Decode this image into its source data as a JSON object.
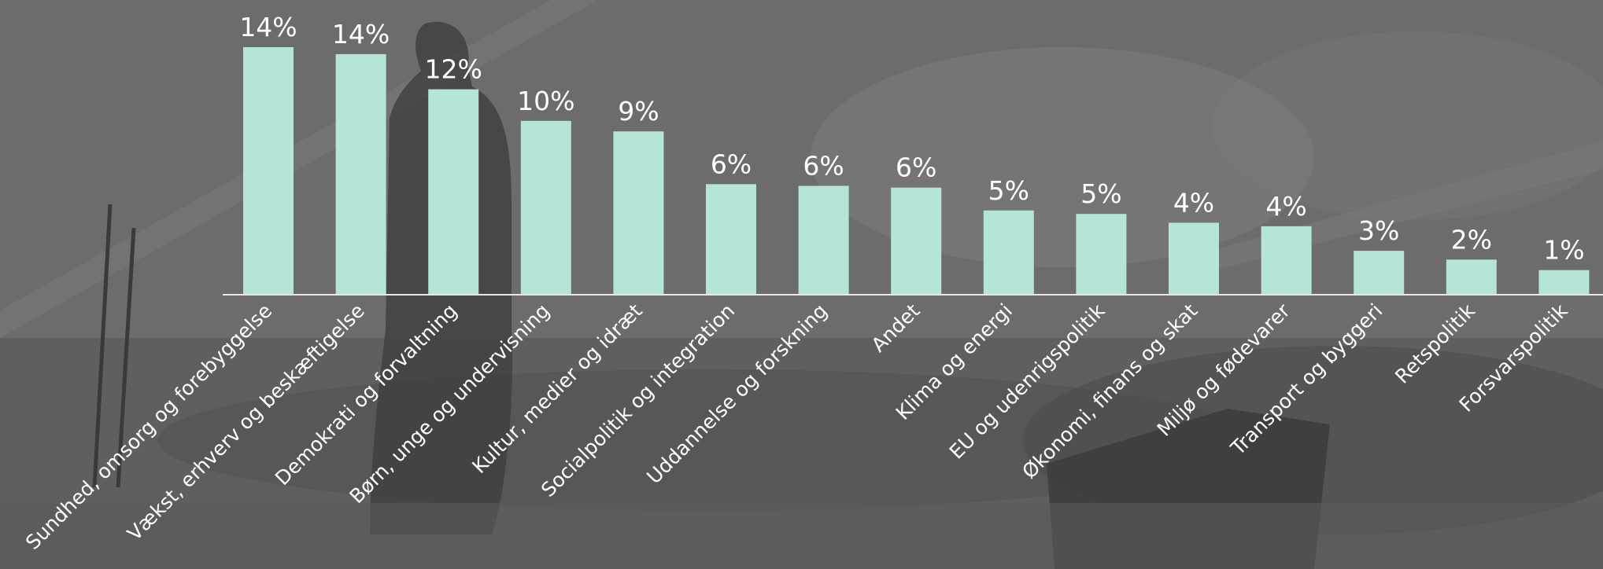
{
  "chart_data": {
    "type": "bar",
    "title": "",
    "xlabel": "",
    "ylabel": "",
    "categories": [
      "Sundhed, omsorg og forebyggelse",
      "Vækst, erhverv og beskæftigelse",
      "Demokrati og forvaltning",
      "Børn, unge og undervisning",
      "Kultur, medier og idræt",
      "Socialpolitik og integration",
      "Uddannelse og forskning",
      "Andet",
      "Klima og energi",
      "EU og udenrigspolitik",
      "Økonomi, finans og skat",
      "Miljø og fødevarer",
      "Transport og byggeri",
      "Retspolitik",
      "Forsvarspolitik"
    ],
    "values": [
      14.1,
      13.7,
      11.7,
      9.9,
      9.3,
      6.3,
      6.2,
      6.1,
      4.8,
      4.6,
      4.1,
      3.9,
      2.5,
      2.0,
      1.4
    ],
    "value_labels": [
      "14%",
      "14%",
      "12%",
      "10%",
      "9%",
      "6%",
      "6%",
      "6%",
      "5%",
      "5%",
      "4%",
      "4%",
      "3%",
      "2%",
      "1%"
    ],
    "ylim": [
      0,
      14.1
    ],
    "grid": false,
    "legend": "none",
    "bar_color": "#b5e5d9",
    "axis_color": "#e8e8e8",
    "text_color": "#ffffff"
  }
}
